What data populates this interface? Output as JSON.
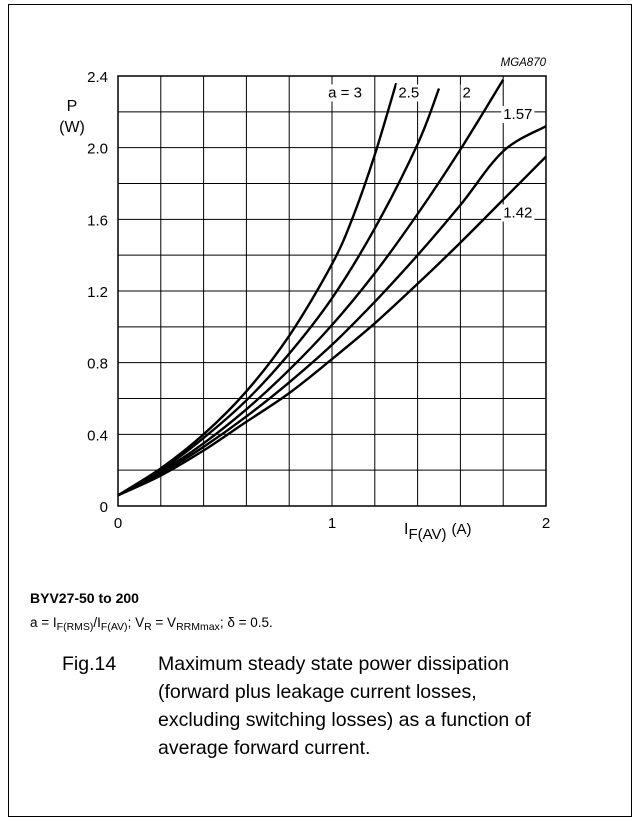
{
  "chart_data": {
    "type": "line",
    "figure_code": "MGA870",
    "y_label_top": "P",
    "y_label_bottom": "(W)",
    "x_label": {
      "symbol": "I",
      "subscript": "F(AV)",
      "unit": "(A)"
    },
    "xlim": [
      0,
      2
    ],
    "ylim": [
      0,
      2.4
    ],
    "x_ticks": [
      {
        "value": 0,
        "label": "0"
      },
      {
        "value": 1,
        "label": "1"
      },
      {
        "value": 2,
        "label": "2"
      }
    ],
    "y_ticks": [
      {
        "value": 0,
        "label": "0"
      },
      {
        "value": 0.4,
        "label": "0.4"
      },
      {
        "value": 0.8,
        "label": "0.8"
      },
      {
        "value": 1.2,
        "label": "1.2"
      },
      {
        "value": 1.6,
        "label": "1.6"
      },
      {
        "value": 2.0,
        "label": "2.0"
      },
      {
        "value": 2.4,
        "label": "2.4"
      }
    ],
    "grid": {
      "x_step": 0.2,
      "y_step": 0.2,
      "shown": true
    },
    "series": [
      {
        "name": "a = 3",
        "x": [
          0,
          0.2,
          0.4,
          0.6,
          0.8,
          1.0,
          1.1,
          1.2,
          1.3
        ],
        "y": [
          0.06,
          0.21,
          0.4,
          0.64,
          0.95,
          1.35,
          1.62,
          1.96,
          2.36
        ]
      },
      {
        "name": "2.5",
        "x": [
          0,
          0.2,
          0.4,
          0.6,
          0.8,
          1.0,
          1.2,
          1.4,
          1.5
        ],
        "y": [
          0.06,
          0.2,
          0.38,
          0.59,
          0.85,
          1.16,
          1.55,
          2.02,
          2.33
        ]
      },
      {
        "name": "2",
        "x": [
          0,
          0.2,
          0.4,
          0.6,
          0.8,
          1.0,
          1.2,
          1.4,
          1.6,
          1.8
        ],
        "y": [
          0.06,
          0.19,
          0.35,
          0.54,
          0.76,
          1.01,
          1.3,
          1.63,
          1.99,
          2.38
        ]
      },
      {
        "name": "1.57",
        "x": [
          0,
          0.2,
          0.4,
          0.6,
          0.8,
          1.0,
          1.2,
          1.4,
          1.6,
          1.8,
          2.0
        ],
        "y": [
          0.06,
          0.18,
          0.33,
          0.5,
          0.69,
          0.9,
          1.14,
          1.4,
          1.68,
          1.98,
          2.12
        ]
      },
      {
        "name": "1.42",
        "x": [
          0,
          0.2,
          0.4,
          0.6,
          0.8,
          1.0,
          1.2,
          1.4,
          1.6,
          1.8,
          2.0
        ],
        "y": [
          0.06,
          0.17,
          0.31,
          0.47,
          0.63,
          0.82,
          1.02,
          1.24,
          1.47,
          1.71,
          1.95
        ]
      }
    ],
    "line_color": "#000000"
  },
  "device": "BYV27-50 to 200",
  "conditions": {
    "a_def": "a = I",
    "a_num_sub": "F(RMS)",
    "slash": "/I",
    "a_den_sub": "F(AV)",
    "v_part": "; V",
    "v_sub": "R",
    "eq_part": " = V",
    "vrrm_sub": "RRMmax",
    "delta_part": "; δ = 0.5."
  },
  "caption": {
    "number": "Fig.14",
    "text": "Maximum steady state power dissipation (forward plus leakage current losses, excluding switching losses) as a function of average forward current."
  }
}
